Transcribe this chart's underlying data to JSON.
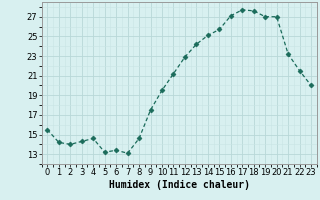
{
  "x": [
    0,
    1,
    2,
    3,
    4,
    5,
    6,
    7,
    8,
    9,
    10,
    11,
    12,
    13,
    14,
    15,
    16,
    17,
    18,
    19,
    20,
    21,
    22,
    23
  ],
  "y": [
    15.5,
    14.2,
    14.0,
    14.3,
    14.6,
    13.2,
    13.4,
    13.1,
    14.6,
    17.5,
    19.5,
    21.2,
    22.9,
    24.2,
    25.1,
    25.7,
    27.1,
    27.7,
    27.6,
    27.0,
    27.0,
    23.2,
    21.5,
    20.0
  ],
  "line_color": "#1a6b5a",
  "marker": "D",
  "marker_size": 2.5,
  "bg_color": "#d8f0f0",
  "grid_color": "#b8d8d8",
  "grid_color_minor": "#c8e4e4",
  "xlabel": "Humidex (Indice chaleur)",
  "xlim": [
    -0.5,
    23.5
  ],
  "ylim": [
    12.0,
    28.5
  ],
  "yticks": [
    13,
    15,
    17,
    19,
    21,
    23,
    25,
    27
  ],
  "xticks": [
    0,
    1,
    2,
    3,
    4,
    5,
    6,
    7,
    8,
    9,
    10,
    11,
    12,
    13,
    14,
    15,
    16,
    17,
    18,
    19,
    20,
    21,
    22,
    23
  ],
  "xlabel_fontsize": 7.0,
  "tick_fontsize": 6.0
}
